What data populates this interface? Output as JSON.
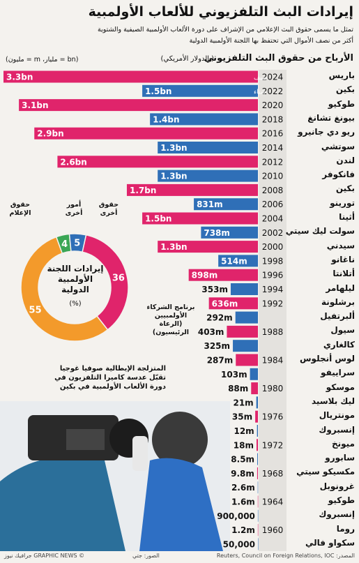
{
  "title": "إيرادات البث التلفزيوني للألعاب الأولمبية",
  "subtitle": [
    "تمثل ما يسمى حقوق البث الإعلامي من الإشراف على دورة الألعاب الأولمبية الصيفية والشتوية",
    "أكثر من نصف الأموال التي تحتفظ بها اللجنة الأولمبية الدولية"
  ],
  "chart_data": [
    {
      "type": "bar",
      "orientation": "horizontal",
      "title": "الأرباح من حقوق البث التلفزيوني",
      "unit_note": "(بالدولار الأمريكي)",
      "abbreviations": "(bn = مليار، m = مليون)",
      "series": [
        {
          "name": "صيف",
          "color": "#e0246b"
        },
        {
          "name": "شتاء",
          "color": "#2f6fb7"
        }
      ],
      "rows": [
        {
          "year": "2024",
          "city": "باريس",
          "value": 3300000000,
          "value_label": "3.3bn",
          "color": "#e0246b"
        },
        {
          "year": "2022",
          "city": "بكين",
          "value": 1500000000,
          "value_label": "1.5bn",
          "color": "#2f6fb7"
        },
        {
          "year": "2020",
          "city": "طوكيو",
          "value": 3100000000,
          "value_label": "3.1bn",
          "color": "#e0246b"
        },
        {
          "year": "2018",
          "city": "بيونغ تشانغ",
          "value": 1400000000,
          "value_label": "1.4bn",
          "color": "#2f6fb7"
        },
        {
          "year": "2016",
          "city": "ريو دي جانيرو",
          "value": 2900000000,
          "value_label": "2.9bn",
          "color": "#e0246b"
        },
        {
          "year": "2014",
          "city": "سوتشي",
          "value": 1300000000,
          "value_label": "1.3bn",
          "color": "#2f6fb7"
        },
        {
          "year": "2012",
          "city": "لندن",
          "value": 2600000000,
          "value_label": "2.6bn",
          "color": "#e0246b"
        },
        {
          "year": "2010",
          "city": "فانكوفر",
          "value": 1300000000,
          "value_label": "1.3bn",
          "color": "#2f6fb7"
        },
        {
          "year": "2008",
          "city": "بكين",
          "value": 1700000000,
          "value_label": "1.7bn",
          "color": "#e0246b"
        },
        {
          "year": "2006",
          "city": "تورينو",
          "value": 831000000,
          "value_label": "831m",
          "color": "#2f6fb7"
        },
        {
          "year": "2004",
          "city": "أثينا",
          "value": 1500000000,
          "value_label": "1.5bn",
          "color": "#e0246b"
        },
        {
          "year": "2002",
          "city": "سولت ليك سيتي",
          "value": 738000000,
          "value_label": "738m",
          "color": "#2f6fb7"
        },
        {
          "year": "2000",
          "city": "سيدني",
          "value": 1300000000,
          "value_label": "1.3bn",
          "color": "#e0246b"
        },
        {
          "year": "1998",
          "city": "ناغانو",
          "value": 514000000,
          "value_label": "514m",
          "color": "#2f6fb7"
        },
        {
          "year": "1996",
          "city": "أتلانتا",
          "value": 898000000,
          "value_label": "898m",
          "color": "#e0246b"
        },
        {
          "year": "1994",
          "city": "ليلهامر",
          "value": 353000000,
          "value_label": "353m",
          "color": "#2f6fb7"
        },
        {
          "year": "1992",
          "city": "برشلونة",
          "value": 636000000,
          "value_label": "636m",
          "color": "#e0246b"
        },
        {
          "year": null,
          "city": "ألبرتفيل",
          "value": 292000000,
          "value_label": "292m",
          "color": "#2f6fb7"
        },
        {
          "year": "1988",
          "city": "سيول",
          "value": 403000000,
          "value_label": "403m",
          "color": "#e0246b"
        },
        {
          "year": null,
          "city": "كالغاري",
          "value": 325000000,
          "value_label": "325m",
          "color": "#2f6fb7"
        },
        {
          "year": "1984",
          "city": "لوس أنجلوس",
          "value": 287000000,
          "value_label": "287m",
          "color": "#e0246b"
        },
        {
          "year": null,
          "city": "سراييفو",
          "value": 103000000,
          "value_label": "103m",
          "color": "#2f6fb7"
        },
        {
          "year": "1980",
          "city": "موسكو",
          "value": 88000000,
          "value_label": "88m",
          "color": "#e0246b"
        },
        {
          "year": null,
          "city": "ليك بلاسيد",
          "value": 21000000,
          "value_label": "21m",
          "color": "#2f6fb7"
        },
        {
          "year": "1976",
          "city": "مونتريال",
          "value": 35000000,
          "value_label": "35m",
          "color": "#e0246b"
        },
        {
          "year": null,
          "city": "إنسبروك",
          "value": 12000000,
          "value_label": "12m",
          "color": "#2f6fb7"
        },
        {
          "year": "1972",
          "city": "ميونخ",
          "value": 18000000,
          "value_label": "18m",
          "color": "#e0246b"
        },
        {
          "year": null,
          "city": "سابورو",
          "value": 8500000,
          "value_label": "8.5m",
          "color": "#2f6fb7"
        },
        {
          "year": "1968",
          "city": "مكسيكو سيتي",
          "value": 9800000,
          "value_label": "9.8m",
          "color": "#e0246b"
        },
        {
          "year": null,
          "city": "غرونوبل",
          "value": 2600000,
          "value_label": "2.6m",
          "color": "#2f6fb7"
        },
        {
          "year": "1964",
          "city": "طوكيو",
          "value": 1600000,
          "value_label": "1.6m",
          "color": "#e0246b"
        },
        {
          "year": null,
          "city": "إنسبروك",
          "value": 900000,
          "value_label": "900,000",
          "color": "#2f6fb7"
        },
        {
          "year": "1960",
          "city": "روما",
          "value": 1200000,
          "value_label": "1.2m",
          "color": "#e0246b"
        },
        {
          "year": null,
          "city": "سكواو فالي",
          "value": 50000,
          "value_label": "50,000",
          "color": "#2f6fb7"
        }
      ]
    },
    {
      "type": "donut",
      "title": "إيرادات اللجنة الأولمبية الدولية",
      "unit_note": "(%)",
      "slices": [
        {
          "name": "أمور أخرى",
          "value": 4,
          "color": "#3aa655"
        },
        {
          "name": "حقوق أخرى",
          "value": 5,
          "color": "#2f6fb7"
        },
        {
          "name": "برنامج الشركاء الأولمبيين (الرعاة الرئيسيون)",
          "value": 36,
          "color": "#e0246b"
        },
        {
          "name": "حقوق الإعلام",
          "value": 55,
          "color": "#f39a2b"
        }
      ]
    }
  ],
  "photo_caption": "المتزلجة الإيطالية صوفيا غوجيا تقبّل عدسة كاميرا التلفزيون في دورة الألعاب الأولمبية في بكين",
  "footer": {
    "source": "المصدر: Reuters, Council on Foreign Relations, IOC",
    "photo_credit": "الصور: جتي",
    "brand": "© GRAPHIC NEWS جرافيك نيوز"
  }
}
